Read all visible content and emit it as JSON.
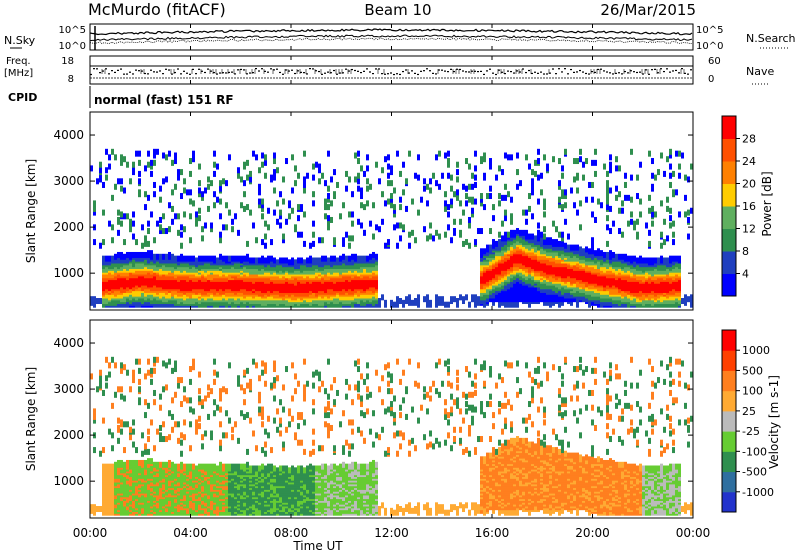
{
  "header": {
    "station": "McMurdo (fitACF)",
    "beam": "Beam 10",
    "date": "26/Mar/2015"
  },
  "top_panels": {
    "nsky_label": "N.Sky",
    "nsearch_label": "N.Search",
    "nsky_ticks": [
      "10^5",
      "10^0"
    ],
    "freq_label": "Freq.",
    "freq_unit": "[MHz]",
    "freq_ticks": [
      "18",
      "8"
    ],
    "nave_label": "Nave",
    "nave_ticks": [
      "60",
      "0"
    ],
    "cpid_label": "CPID",
    "cpid_value": "normal (fast) 151 RF"
  },
  "x_axis": {
    "label": "Time UT",
    "ticks": [
      "00:00",
      "04:00",
      "08:00",
      "12:00",
      "16:00",
      "20:00",
      "00:00"
    ],
    "range_hours": [
      0,
      24
    ]
  },
  "chart_data": [
    {
      "type": "heatmap",
      "panel": "power",
      "ylabel": "Slant Range [km]",
      "y_ticks": [
        1000,
        2000,
        3000,
        4000
      ],
      "ylim": [
        200,
        4500
      ],
      "xlim_hours": [
        0,
        24
      ],
      "colorbar": {
        "label": "Power [dB]",
        "ticks": [
          "4",
          "8",
          "12",
          "16",
          "20",
          "24",
          "28"
        ],
        "colors": [
          "#0000ff",
          "#1f3fbf",
          "#2f8f4f",
          "#5faf5f",
          "#ffcc00",
          "#ff8000",
          "#ff5000",
          "#ff0000"
        ]
      },
      "series": [
        {
          "x": [
            0.5,
            2,
            4,
            6,
            8,
            10,
            11.5
          ],
          "range_km": [
            700,
            800,
            700,
            700,
            650,
            700,
            750
          ]
        },
        {
          "x": [
            15.5,
            17,
            18,
            20,
            22,
            23.5
          ],
          "range_km": [
            800,
            1300,
            1100,
            850,
            650,
            700
          ]
        }
      ]
    },
    {
      "type": "heatmap",
      "panel": "velocity",
      "ylabel": "Slant Range [km]",
      "y_ticks": [
        1000,
        2000,
        3000,
        4000
      ],
      "ylim": [
        200,
        4500
      ],
      "xlim_hours": [
        0,
        24
      ],
      "colorbar": {
        "label": "Velocity [m s-1]",
        "ticks": [
          "1000",
          "500",
          "100",
          "25",
          "-25",
          "-100",
          "-500",
          "-1000"
        ],
        "colors": [
          "#2233cc",
          "#2f6f9f",
          "#2f8f4f",
          "#66cc33",
          "#bbbbbb",
          "#ffaa33",
          "#ff7f1f",
          "#ff4000",
          "#ff0000"
        ]
      }
    }
  ]
}
